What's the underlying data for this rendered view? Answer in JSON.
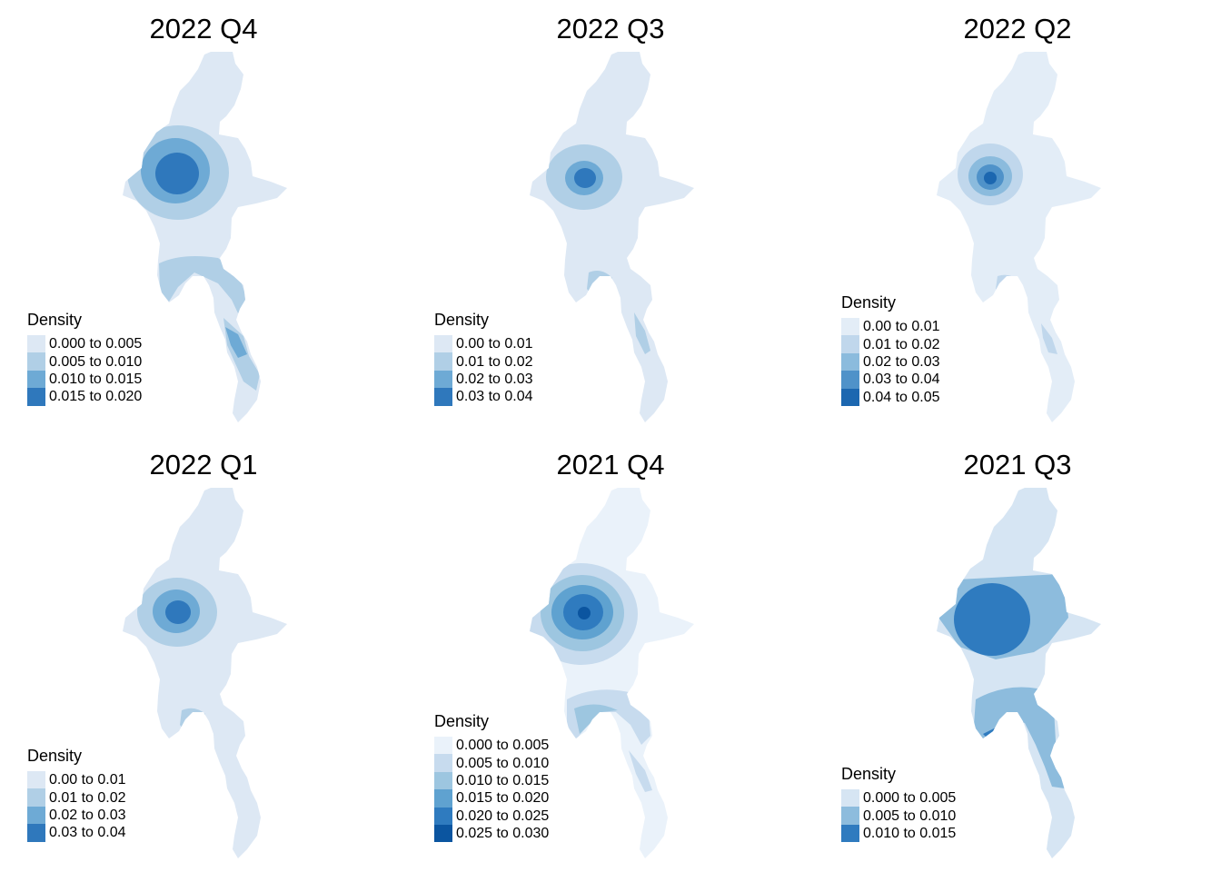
{
  "colors": {
    "c0": "#dde8f4",
    "c1": "#b0cfe6",
    "c2": "#6eaad5",
    "c3": "#2f78bc",
    "c4": "#3a7fc0",
    "c5": "#0e5ba8",
    "c6": "#eaf2fa",
    "c7": "#c7dbee"
  },
  "panels": [
    {
      "title": "2022 Q4",
      "legend": {
        "title": "Density",
        "rows": [
          {
            "label": "0.000 to 0.005",
            "color": "#dde8f4"
          },
          {
            "label": "0.005 to 0.010",
            "color": "#b0cfe6"
          },
          {
            "label": "0.010 to 0.015",
            "color": "#6eaad5"
          },
          {
            "label": "0.015 to 0.020",
            "color": "#2f78bc"
          }
        ]
      }
    },
    {
      "title": "2022 Q3",
      "legend": {
        "title": "Density",
        "rows": [
          {
            "label": "0.00 to 0.01",
            "color": "#dde8f4"
          },
          {
            "label": "0.01 to 0.02",
            "color": "#b0cfe6"
          },
          {
            "label": "0.02 to 0.03",
            "color": "#6eaad5"
          },
          {
            "label": "0.03 to 0.04",
            "color": "#2f78bc"
          }
        ]
      }
    },
    {
      "title": "2022 Q2",
      "legend": {
        "title": "Density",
        "rows": [
          {
            "label": "0.00 to 0.01",
            "color": "#e3edf7"
          },
          {
            "label": "0.01 to 0.02",
            "color": "#c0d7ec"
          },
          {
            "label": "0.02 to 0.03",
            "color": "#8bbbdd"
          },
          {
            "label": "0.03 to 0.04",
            "color": "#4f92c9"
          },
          {
            "label": "0.04 to 0.05",
            "color": "#1c67b0"
          }
        ]
      }
    },
    {
      "title": "2022 Q1",
      "legend": {
        "title": "Density",
        "rows": [
          {
            "label": "0.00 to 0.01",
            "color": "#dde8f4"
          },
          {
            "label": "0.01 to 0.02",
            "color": "#b0cfe6"
          },
          {
            "label": "0.02 to 0.03",
            "color": "#6eaad5"
          },
          {
            "label": "0.03 to 0.04",
            "color": "#2f78bc"
          }
        ]
      }
    },
    {
      "title": "2021 Q4",
      "legend": {
        "title": "Density",
        "rows": [
          {
            "label": "0.000 to 0.005",
            "color": "#eaf2fa"
          },
          {
            "label": "0.005 to 0.010",
            "color": "#c7dbee"
          },
          {
            "label": "0.010 to 0.015",
            "color": "#9dc6e0"
          },
          {
            "label": "0.015 to 0.020",
            "color": "#5fa2d0"
          },
          {
            "label": "0.020 to 0.025",
            "color": "#2f7bbf"
          },
          {
            "label": "0.025 to 0.030",
            "color": "#0b55a0"
          }
        ]
      }
    },
    {
      "title": "2021 Q3",
      "legend": {
        "title": "Density",
        "rows": [
          {
            "label": "0.000 to 0.005",
            "color": "#d6e5f3"
          },
          {
            "label": "0.005 to 0.010",
            "color": "#8dbcdd"
          },
          {
            "label": "0.010 to 0.015",
            "color": "#2f7bbf"
          }
        ]
      }
    }
  ]
}
